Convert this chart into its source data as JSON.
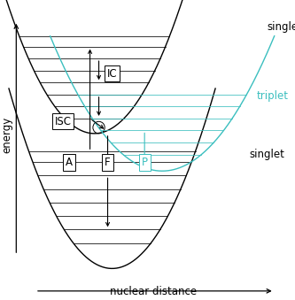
{
  "bg_color": "#ffffff",
  "line_color": "#000000",
  "teal_color": "#3bbfbf",
  "singlet_label": "singlet",
  "triplet_label": "triplet",
  "energy_label": "energy",
  "xaxis_label": "nuclear distance",
  "labels": {
    "A": "A",
    "F": "F",
    "P": "P",
    "IC": "IC",
    "ISC": "ISC"
  },
  "font_size": 8.5,
  "fig_w": 3.33,
  "fig_h": 3.39,
  "dpi": 100
}
